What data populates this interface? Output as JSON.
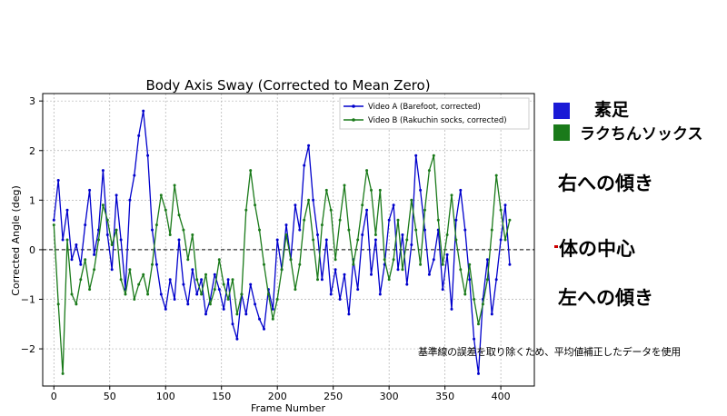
{
  "chart_data": {
    "type": "line",
    "title": "Body Axis Sway (Corrected to Mean Zero)",
    "xlabel": "Frame Number",
    "ylabel": "Corrected Angle (deg)",
    "xlim": [
      -10,
      430
    ],
    "ylim": [
      -2.75,
      3.15
    ],
    "xticks": [
      0,
      50,
      100,
      150,
      200,
      250,
      300,
      350,
      400
    ],
    "yticks": [
      -2,
      -1,
      0,
      1,
      2,
      3
    ],
    "grid": true,
    "legend_position": "top-right",
    "zero_line": true,
    "series": [
      {
        "name": "Video A (Barefoot, corrected)",
        "color": "#0000cc",
        "x": [
          0,
          4,
          8,
          12,
          16,
          20,
          24,
          28,
          32,
          36,
          40,
          44,
          48,
          52,
          56,
          60,
          64,
          68,
          72,
          76,
          80,
          84,
          88,
          92,
          96,
          100,
          104,
          108,
          112,
          116,
          120,
          124,
          128,
          132,
          136,
          140,
          144,
          148,
          152,
          156,
          160,
          164,
          168,
          172,
          176,
          180,
          184,
          188,
          192,
          196,
          200,
          204,
          208,
          212,
          216,
          220,
          224,
          228,
          232,
          236,
          240,
          244,
          248,
          252,
          256,
          260,
          264,
          268,
          272,
          276,
          280,
          284,
          288,
          292,
          296,
          300,
          304,
          308,
          312,
          316,
          320,
          324,
          328,
          332,
          336,
          340,
          344,
          348,
          352,
          356,
          360,
          364,
          368,
          372,
          376,
          380,
          384,
          388,
          392,
          396,
          400,
          404,
          408
        ],
        "y": [
          0.6,
          1.4,
          0.2,
          0.8,
          -0.2,
          0.1,
          -0.3,
          0.5,
          1.2,
          -0.1,
          0.4,
          1.6,
          0.3,
          -0.4,
          1.1,
          0.2,
          -0.8,
          1.0,
          1.5,
          2.3,
          2.8,
          1.9,
          0.4,
          -0.3,
          -0.9,
          -1.2,
          -0.6,
          -1.0,
          0.2,
          -0.7,
          -1.1,
          -0.4,
          -0.9,
          -0.6,
          -1.3,
          -1.0,
          -0.5,
          -0.8,
          -1.2,
          -0.6,
          -1.5,
          -1.8,
          -0.9,
          -1.3,
          -0.7,
          -1.1,
          -1.4,
          -1.6,
          -0.8,
          -1.2,
          0.2,
          -0.4,
          0.5,
          -0.2,
          0.9,
          0.4,
          1.7,
          2.1,
          1.0,
          0.3,
          -0.6,
          0.2,
          -0.9,
          -0.4,
          -1.0,
          -0.5,
          -1.3,
          -0.2,
          -0.8,
          0.3,
          0.8,
          -0.5,
          0.2,
          -0.9,
          -0.3,
          0.6,
          0.9,
          -0.4,
          0.3,
          -0.7,
          0.1,
          1.9,
          1.2,
          0.4,
          -0.5,
          -0.2,
          0.4,
          -0.8,
          -0.1,
          -1.2,
          0.6,
          1.2,
          0.4,
          -0.6,
          -1.8,
          -2.5,
          -1.0,
          -0.2,
          -1.3,
          -0.6,
          0.2,
          0.9,
          -0.3
        ]
      },
      {
        "name": "Video B (Rakuchin socks, corrected)",
        "color": "#1a7a1a",
        "x": [
          0,
          4,
          8,
          12,
          16,
          20,
          24,
          28,
          32,
          36,
          40,
          44,
          48,
          52,
          56,
          60,
          64,
          68,
          72,
          76,
          80,
          84,
          88,
          92,
          96,
          100,
          104,
          108,
          112,
          116,
          120,
          124,
          128,
          132,
          136,
          140,
          144,
          148,
          152,
          156,
          160,
          164,
          168,
          172,
          176,
          180,
          184,
          188,
          192,
          196,
          200,
          204,
          208,
          212,
          216,
          220,
          224,
          228,
          232,
          236,
          240,
          244,
          248,
          252,
          256,
          260,
          264,
          268,
          272,
          276,
          280,
          284,
          288,
          292,
          296,
          300,
          304,
          308,
          312,
          316,
          320,
          324,
          328,
          332,
          336,
          340,
          344,
          348,
          352,
          356,
          360,
          364,
          368,
          372,
          376,
          380,
          384,
          388,
          392,
          396,
          400,
          404,
          408
        ],
        "y": [
          0.5,
          -1.1,
          -2.5,
          0.2,
          -0.9,
          -1.1,
          -0.6,
          -0.2,
          -0.8,
          -0.4,
          0.2,
          0.9,
          0.6,
          0.1,
          0.4,
          -0.6,
          -0.9,
          -0.4,
          -1.0,
          -0.7,
          -0.5,
          -0.9,
          -0.3,
          0.5,
          1.1,
          0.8,
          0.3,
          1.3,
          0.7,
          0.4,
          -0.2,
          0.3,
          -0.6,
          -0.9,
          -0.5,
          -1.1,
          -0.8,
          -0.2,
          -0.7,
          -1.0,
          -0.6,
          -1.3,
          -0.9,
          0.8,
          1.6,
          0.9,
          0.4,
          -0.3,
          -0.9,
          -1.4,
          -1.0,
          -0.4,
          0.3,
          -0.2,
          -0.8,
          -0.3,
          0.6,
          1.0,
          0.2,
          -0.6,
          0.5,
          1.2,
          0.8,
          -0.2,
          0.6,
          1.3,
          0.4,
          -0.3,
          0.2,
          0.9,
          1.6,
          1.2,
          0.3,
          1.2,
          -0.2,
          -0.6,
          -0.2,
          0.6,
          -0.4,
          0.2,
          1.0,
          0.4,
          -0.3,
          0.8,
          1.6,
          1.9,
          0.6,
          -0.3,
          0.3,
          1.1,
          0.2,
          -0.4,
          -0.9,
          -0.3,
          -1.0,
          -1.5,
          -1.1,
          -0.6,
          0.4,
          1.5,
          0.8,
          0.2,
          0.6
        ]
      }
    ]
  },
  "annotations": {
    "legend_barefoot": "素足",
    "legend_socks": "ラクちんソックス",
    "right_tilt": "右への傾き",
    "body_center": "体の中心",
    "left_tilt": "左への傾き",
    "note": "基準線の誤差を取り除くため、平均値補正したデータを使用",
    "swatch_barefoot_color": "#1a1ad6",
    "swatch_socks_color": "#1a7a1a",
    "center_mark_color": "#cc0000"
  }
}
